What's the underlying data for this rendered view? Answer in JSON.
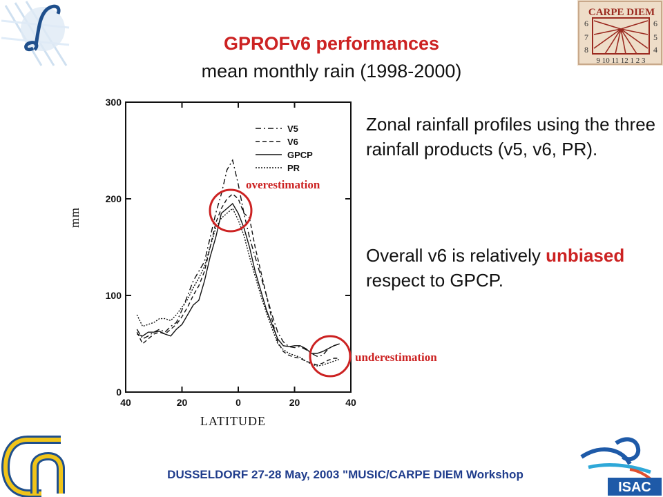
{
  "slide": {
    "title": "GPROFv6 performances",
    "subtitle": "mean monthly rain (1998-2000)",
    "paragraph1": "Zonal rainfall profiles using the three rainfall products (v5, v6, PR).",
    "paragraph2_prefix": "Overall v6 is relatively",
    "paragraph2_highlight": "unbiased",
    "paragraph2_suffix": "respect to GPCP.",
    "footer": "DUSSELDORF 27-28 May, 2003 \"MUSIC/CARPE DIEM Workshop",
    "logo_top_right": {
      "title": "CARPE DIEM",
      "numbers_left": [
        "6",
        "7",
        "8"
      ],
      "numbers_right": [
        "6",
        "5",
        "4"
      ],
      "numbers_bottom": "9 10 11 12 1 2 3"
    },
    "logo_bottom_right": "ISAC"
  },
  "colors": {
    "accent_red": "#cc2222",
    "footer_blue": "#1f3c8c",
    "isac_blue": "#1e5aa8"
  },
  "chart_data": {
    "type": "line",
    "xlabel": "LATITUDE",
    "ylabel": "mm",
    "x_ticks": [
      "40",
      "20",
      "0",
      "20",
      "40"
    ],
    "y_ticks": [
      "0",
      "100",
      "200",
      "300"
    ],
    "xlim": [
      -40,
      40
    ],
    "ylim": [
      0,
      300
    ],
    "x": [
      -36,
      -34,
      -32,
      -30,
      -28,
      -26,
      -24,
      -22,
      -20,
      -18,
      -16,
      -14,
      -12,
      -10,
      -8,
      -6,
      -4,
      -2,
      0,
      2,
      4,
      6,
      8,
      10,
      12,
      14,
      16,
      18,
      20,
      22,
      24,
      26,
      28,
      30,
      32,
      34,
      36
    ],
    "series": [
      {
        "name": "V5",
        "style": "dashdot",
        "values": [
          65,
          55,
          58,
          62,
          65,
          62,
          68,
          72,
          85,
          100,
          115,
          125,
          135,
          160,
          185,
          205,
          230,
          240,
          215,
          185,
          160,
          140,
          120,
          100,
          80,
          62,
          52,
          47,
          46,
          47,
          44,
          40,
          37,
          38,
          45,
          48,
          50
        ]
      },
      {
        "name": "V6",
        "style": "dashed",
        "values": [
          62,
          50,
          55,
          60,
          62,
          60,
          65,
          70,
          78,
          88,
          100,
          110,
          125,
          150,
          175,
          190,
          200,
          205,
          200,
          185,
          180,
          150,
          125,
          100,
          75,
          52,
          42,
          38,
          36,
          35,
          32,
          30,
          28,
          30,
          33,
          35,
          35
        ]
      },
      {
        "name": "GPCP",
        "style": "solid",
        "values": [
          60,
          58,
          62,
          62,
          63,
          60,
          58,
          65,
          70,
          80,
          90,
          95,
          115,
          140,
          160,
          185,
          190,
          195,
          185,
          170,
          150,
          125,
          105,
          85,
          70,
          55,
          48,
          47,
          48,
          48,
          45,
          40,
          40,
          42,
          45,
          48,
          50
        ]
      },
      {
        "name": "PR",
        "style": "dotted",
        "values": [
          80,
          68,
          70,
          72,
          76,
          76,
          74,
          80,
          88,
          96,
          108,
          118,
          130,
          150,
          170,
          180,
          185,
          190,
          178,
          162,
          140,
          120,
          100,
          82,
          66,
          50,
          44,
          40,
          38,
          36,
          32,
          29,
          27,
          28,
          30,
          32,
          34
        ]
      }
    ],
    "annotations": [
      {
        "text": "overestimation",
        "at_x": -3,
        "at_y": 190
      },
      {
        "text": "underestimation",
        "at_x": 34,
        "at_y": 40
      }
    ],
    "legend_position": "top-right",
    "grid": false
  }
}
